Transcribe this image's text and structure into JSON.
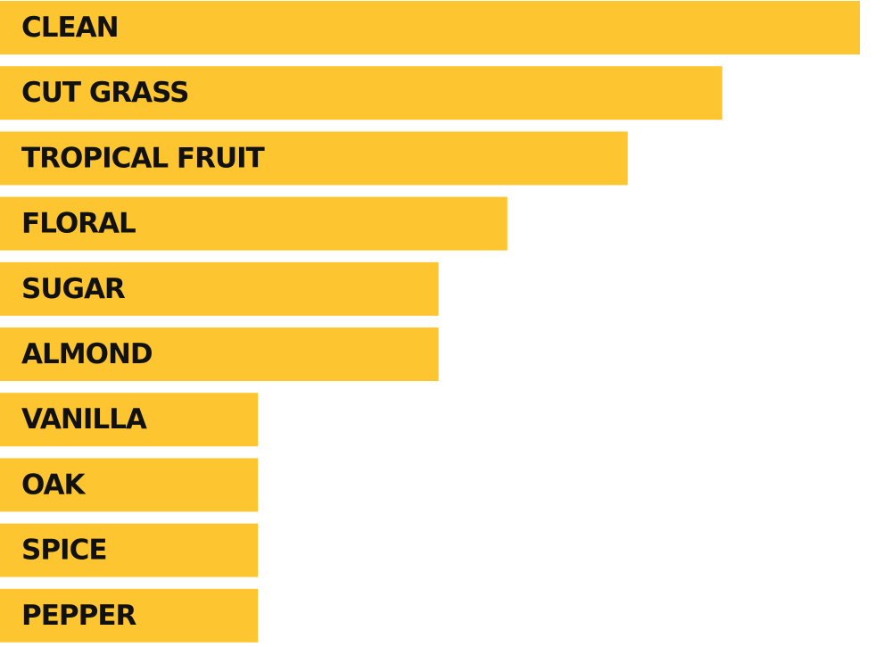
{
  "chart_data": {
    "type": "bar",
    "orientation": "horizontal",
    "categories": [
      "CLEAN",
      "CUT GRASS",
      "TROPICAL FRUIT",
      "FLORAL",
      "SUGAR",
      "ALMOND",
      "VANILLA",
      "OAK",
      "SPICE",
      "PEPPER"
    ],
    "values": [
      100,
      84,
      73,
      59,
      51,
      51,
      30,
      30,
      30,
      30
    ],
    "title": "",
    "xlabel": "",
    "ylabel": "",
    "xlim": [
      0,
      100
    ],
    "grid": false,
    "legend": "none",
    "bar_color": "#fdc52f",
    "label_color": "#111111"
  }
}
